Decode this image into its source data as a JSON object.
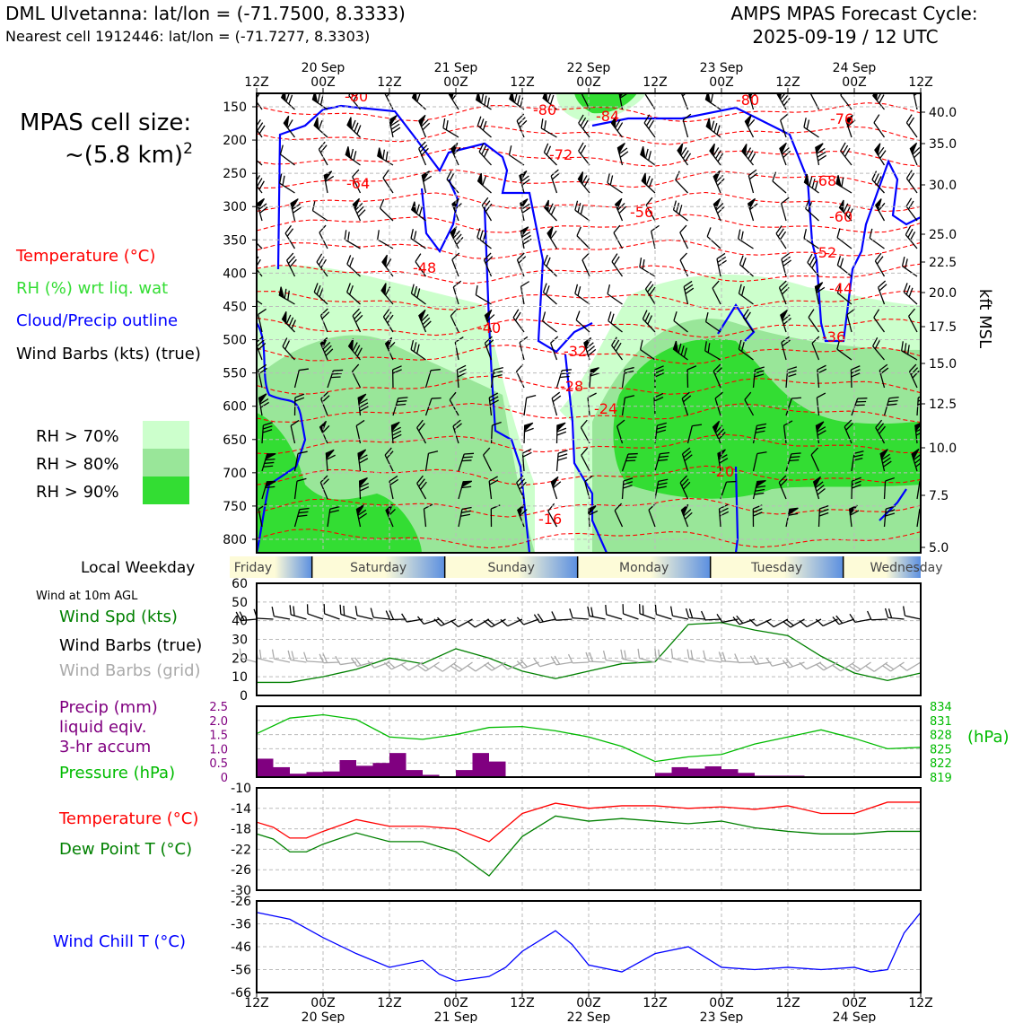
{
  "header": {
    "station_line": "DML Ulvetanna: lat/lon = (-71.7500, 8.3333)",
    "cell_line": "Nearest cell 1912446: lat/lon = (-71.7277, 8.3303)",
    "cycle_title": "AMPS MPAS Forecast Cycle:",
    "cycle_date": "2025-09-19 / 12 UTC"
  },
  "left_panel": {
    "cell_size_label": "MPAS cell size:",
    "cell_size_value": "~(5.8 km)",
    "cell_size_exp": "2",
    "legend_temperature": "Temperature (°C)",
    "legend_rh": "RH (%) wrt liq. wat",
    "legend_cloud": "Cloud/Precip outline",
    "legend_wind": "Wind Barbs (kts) (true)",
    "rh_levels": [
      "RH > 70%",
      "RH > 80%",
      "RH > 90%"
    ]
  },
  "colors": {
    "temperature": "#ff0000",
    "rh_legend": "#33dd33",
    "rh70": "#ccffcc",
    "rh80": "#99e699",
    "rh90": "#33dd33",
    "cloud": "#0000ff",
    "wind_speed": "#008000",
    "grid_barbs": "#aaaaaa",
    "precip": "#800080",
    "pressure": "#00bb00",
    "dewpoint": "#008000",
    "windchill": "#0000ff"
  },
  "time_axis": {
    "top_ticks": [
      "12Z",
      "00Z",
      "12Z",
      "00Z",
      "12Z",
      "00Z",
      "12Z",
      "00Z",
      "12Z",
      "00Z",
      "12Z"
    ],
    "top_dates": [
      "20 Sep",
      "21 Sep",
      "22 Sep",
      "23 Sep",
      "24 Sep"
    ],
    "bottom_ticks": [
      "12Z",
      "00Z",
      "12Z",
      "00Z",
      "12Z",
      "00Z",
      "12Z",
      "00Z",
      "12Z",
      "00Z",
      "12Z"
    ],
    "bottom_dates": [
      "20 Sep",
      "21 Sep",
      "22 Sep",
      "23 Sep",
      "24 Sep"
    ],
    "weekday_label": "Local Weekday",
    "weekdays": [
      "Friday",
      "Saturday",
      "Sunday",
      "Monday",
      "Tuesday",
      "Wednesday"
    ]
  },
  "chart_data": [
    {
      "type": "heatmap",
      "panel": "cross-section",
      "y_axis_left": [
        "150",
        "200",
        "250",
        "300",
        "350",
        "400",
        "450",
        "500",
        "550",
        "600",
        "650",
        "700",
        "750",
        "800"
      ],
      "y_axis_right": [
        "40.0",
        "35.0",
        "30.0",
        "25.0",
        "22.5",
        "20.0",
        "17.5",
        "15.0",
        "12.5",
        "10.0",
        "7.5",
        "5.0"
      ],
      "ylabel_right": "kft MSL",
      "temperature_labels": [
        "-80",
        "-80",
        "-84",
        "-80",
        "-76",
        "-72",
        "-64",
        "-68",
        "-56",
        "-60",
        "-52",
        "-48",
        "-44",
        "-40",
        "-36",
        "-32",
        "-28",
        "-24",
        "-20",
        "-16"
      ]
    },
    {
      "type": "line",
      "panel": "wind",
      "title": "Wind at 10m AGL",
      "labels": [
        "Wind Spd (kts)",
        "Wind Barbs (true)",
        "Wind Barbs (grid)"
      ],
      "y_ticks": [
        "0",
        "10",
        "20",
        "30",
        "40",
        "50",
        "60"
      ],
      "ylim": [
        0,
        60
      ],
      "x_hours": [
        0,
        6,
        12,
        18,
        24,
        30,
        36,
        42,
        48,
        54,
        60,
        66,
        72,
        78,
        84,
        90,
        96,
        102,
        108,
        114,
        120
      ],
      "wind_speed": [
        7,
        7,
        10,
        14,
        20,
        17,
        25,
        20,
        13,
        9,
        13,
        17,
        18,
        38,
        39,
        35,
        32,
        21,
        12,
        8,
        12
      ]
    },
    {
      "type": "bar",
      "panel": "precip-pressure",
      "labels": [
        "Precip (mm)",
        "liquid eqiv.",
        "3-hr accum",
        "Pressure (hPa)"
      ],
      "y_ticks_left": [
        "0",
        "0.5",
        "1.0",
        "1.5",
        "2.0",
        "2.5"
      ],
      "y_ticks_right": [
        "819",
        "822",
        "825",
        "828",
        "831",
        "834"
      ],
      "unit_right": "(hPa)",
      "ylim_left": [
        0,
        2.5
      ],
      "ylim_right": [
        819,
        834
      ],
      "precip_hours": [
        1.5,
        4.5,
        7.5,
        10.5,
        13.5,
        16.5,
        19.5,
        22.5,
        25.5,
        28.5,
        31.5,
        34.5,
        37.5,
        40.5,
        43.5,
        46.5,
        49.5,
        52.5,
        55.5,
        58.5,
        61.5,
        64.5,
        67.5,
        70.5,
        73.5,
        76.5,
        79.5,
        82.5,
        85.5,
        88.5,
        91.5,
        94.5,
        97.5
      ],
      "precip_values": [
        0.65,
        0.35,
        0.12,
        0.18,
        0.2,
        0.6,
        0.4,
        0.5,
        0.85,
        0.25,
        0.08,
        0,
        0.25,
        0.85,
        0.55,
        0,
        0,
        0,
        0,
        0,
        0,
        0,
        0,
        0,
        0.15,
        0.35,
        0.3,
        0.38,
        0.28,
        0.15,
        0.05,
        0.05,
        0.05
      ],
      "pressure_hours": [
        0,
        6,
        12,
        18,
        24,
        30,
        36,
        42,
        48,
        54,
        60,
        66,
        72,
        78,
        84,
        90,
        96,
        102,
        108,
        114,
        120
      ],
      "pressure": [
        828.2,
        831.5,
        832.2,
        831.2,
        827.5,
        827.0,
        828.0,
        829.5,
        829.7,
        828.8,
        827.5,
        825.5,
        822.3,
        823.3,
        823.8,
        826.0,
        827.5,
        829.0,
        827.2,
        825.0,
        825.3
      ]
    },
    {
      "type": "line",
      "panel": "temperature",
      "labels": [
        "Temperature (°C)",
        "Dew Point T (°C)"
      ],
      "y_ticks": [
        "-10",
        "-14",
        "-18",
        "-22",
        "-26",
        "-30"
      ],
      "ylim": [
        -30,
        -10
      ],
      "x_hours": [
        0,
        3,
        6,
        9,
        12,
        18,
        24,
        30,
        36,
        42,
        48,
        54,
        60,
        66,
        72,
        78,
        84,
        90,
        96,
        102,
        108,
        114,
        120
      ],
      "temperature": [
        -16.7,
        -17.7,
        -19.8,
        -19.8,
        -18.5,
        -16.2,
        -17.5,
        -17.5,
        -18.0,
        -20.5,
        -15.0,
        -13.0,
        -14.0,
        -13.5,
        -13.5,
        -14.0,
        -13.7,
        -14.2,
        -13.5,
        -15.0,
        -15.0,
        -12.8,
        -12.8
      ],
      "dewpoint": [
        -19.0,
        -20.0,
        -22.5,
        -22.5,
        -21.0,
        -18.8,
        -20.5,
        -20.5,
        -22.5,
        -27.2,
        -19.5,
        -15.5,
        -16.5,
        -16.0,
        -16.5,
        -17.0,
        -16.5,
        -17.8,
        -18.5,
        -19.0,
        -19.0,
        -18.5,
        -18.5
      ]
    },
    {
      "type": "line",
      "panel": "windchill",
      "labels": [
        "Wind Chill T (°C)"
      ],
      "y_ticks": [
        "-26",
        "-36",
        "-46",
        "-56",
        "-66"
      ],
      "ylim": [
        -66,
        -26
      ],
      "x_hours": [
        0,
        6,
        9,
        12,
        18,
        24,
        30,
        33,
        36,
        42,
        45,
        48,
        54,
        57,
        60,
        66,
        72,
        78,
        84,
        90,
        96,
        102,
        108,
        111,
        114,
        117,
        120
      ],
      "windchill": [
        -31,
        -34,
        -38,
        -42,
        -49,
        -55,
        -52,
        -58,
        -61,
        -59,
        -55,
        -48,
        -39,
        -45,
        -54,
        -57,
        -49,
        -46,
        -55,
        -56,
        -55,
        -56,
        -55,
        -57,
        -56,
        -40,
        -31
      ]
    }
  ]
}
